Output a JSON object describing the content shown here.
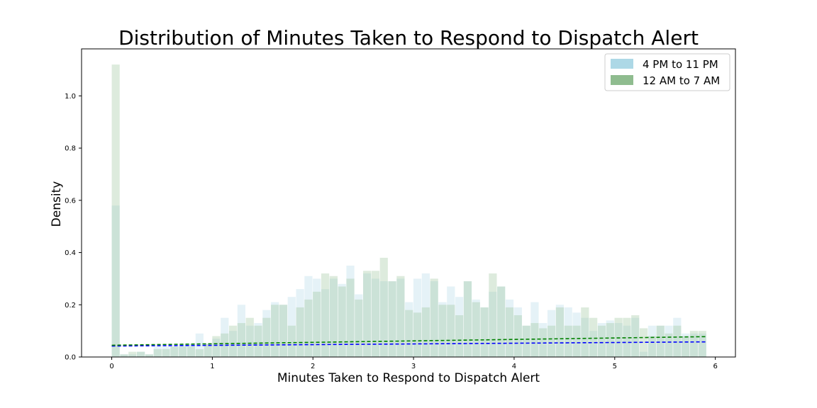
{
  "chart_data": {
    "type": "bar",
    "title": "Distribution of Minutes Taken to Respond to Dispatch Alert",
    "xlabel": "Minutes Taken to Respond to Dispatch Alert",
    "ylabel": "Density",
    "xlim": [
      -0.3,
      6.2
    ],
    "ylim": [
      0,
      1.18
    ],
    "x_ticks": [
      0,
      1,
      2,
      3,
      4,
      5,
      6
    ],
    "y_ticks": [
      0.0,
      0.2,
      0.4,
      0.6,
      0.8,
      1.0
    ],
    "y_tick_labels": [
      "0.0",
      "0.2",
      "0.4",
      "0.6",
      "0.8",
      "1.0"
    ],
    "bin_start": 0,
    "bin_width": 0.0833,
    "legend": {
      "placement": "top-right",
      "entries": [
        "4 PM to 11 PM",
        "12 AM to 7 AM"
      ]
    },
    "series": [
      {
        "name": "4 PM to 11 PM",
        "color": "#add8e6",
        "values": [
          0.58,
          0.01,
          0.01,
          0.02,
          0.01,
          0.04,
          0.04,
          0.04,
          0.05,
          0.05,
          0.09,
          0.05,
          0.07,
          0.15,
          0.1,
          0.2,
          0.12,
          0.13,
          0.18,
          0.21,
          0.2,
          0.23,
          0.26,
          0.31,
          0.3,
          0.26,
          0.3,
          0.28,
          0.35,
          0.24,
          0.32,
          0.3,
          0.29,
          0.29,
          0.3,
          0.21,
          0.3,
          0.32,
          0.29,
          0.21,
          0.27,
          0.23,
          0.29,
          0.22,
          0.19,
          0.25,
          0.27,
          0.22,
          0.19,
          0.12,
          0.21,
          0.13,
          0.18,
          0.2,
          0.19,
          0.17,
          0.15,
          0.1,
          0.13,
          0.14,
          0.13,
          0.12,
          0.15,
          0.02,
          0.12,
          0.12,
          0.12,
          0.15,
          0.09,
          0.09,
          0.09
        ]
      },
      {
        "name": "12 AM to 7 AM",
        "color": "#8fbc8f",
        "values": [
          1.12,
          0.01,
          0.02,
          0.02,
          0.01,
          0.03,
          0.03,
          0.04,
          0.04,
          0.04,
          0.03,
          0.05,
          0.08,
          0.09,
          0.12,
          0.13,
          0.15,
          0.12,
          0.15,
          0.2,
          0.2,
          0.12,
          0.19,
          0.22,
          0.25,
          0.32,
          0.31,
          0.27,
          0.3,
          0.22,
          0.33,
          0.33,
          0.38,
          0.29,
          0.31,
          0.18,
          0.17,
          0.19,
          0.3,
          0.2,
          0.2,
          0.16,
          0.29,
          0.21,
          0.19,
          0.32,
          0.27,
          0.19,
          0.16,
          0.12,
          0.13,
          0.11,
          0.12,
          0.19,
          0.12,
          0.12,
          0.19,
          0.15,
          0.12,
          0.13,
          0.15,
          0.15,
          0.16,
          0.11,
          0.08,
          0.12,
          0.09,
          0.12,
          0.08,
          0.1,
          0.1
        ]
      }
    ],
    "trend_lines": [
      {
        "color": "#0000ff",
        "style": "dashed",
        "x": [
          0,
          5.92
        ],
        "y": [
          0.042,
          0.058
        ]
      },
      {
        "color": "#008000",
        "style": "dashed",
        "x": [
          0,
          5.92
        ],
        "y": [
          0.045,
          0.078
        ]
      }
    ]
  }
}
